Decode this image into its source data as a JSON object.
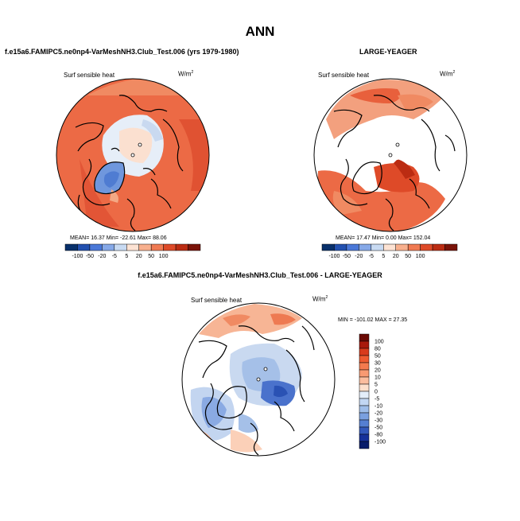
{
  "figure": {
    "title": "ANN",
    "diff_title": "f.e15a6.FAMIPC5.ne0np4-VarMeshNH3.Club_Test.006 - LARGE-YEAGER"
  },
  "panels": [
    {
      "id": "left",
      "title": "f.e15a6.FAMIPC5.ne0np4-VarMeshNH3.Club_Test.006 (yrs 1979-1980)",
      "variable": "Surf sensible heat",
      "units": "W/m",
      "units_exp": "2",
      "stats_text": "MEAN=  16.37  Min= -22.61  Max=  88.06",
      "stats": {
        "mean": 16.37,
        "min": -22.61,
        "max": 88.06
      }
    },
    {
      "id": "right",
      "title": "LARGE-YEAGER",
      "variable": "Surf sensible heat",
      "units": "W/m",
      "units_exp": "2",
      "stats_text": "MEAN=  17.47  Min=   0.00  Max=  152.04",
      "stats": {
        "mean": 17.47,
        "min": 0.0,
        "max": 152.04
      }
    },
    {
      "id": "diff",
      "variable": "Surf sensible heat",
      "units": "W/m",
      "units_exp": "2",
      "stats_text": "MIN = -101.02  MAX =  27.35",
      "stats": {
        "min": -101.02,
        "max": 27.35
      }
    }
  ],
  "colorbar_main": {
    "labels": [
      "-100",
      "-50",
      "-20",
      "-5",
      "5",
      "20",
      "50",
      "100"
    ],
    "colors": [
      "#08306b",
      "#2250b0",
      "#4a78d8",
      "#86a9e8",
      "#c8daf2",
      "#fde3d4",
      "#f8b08e",
      "#f07a52",
      "#de4a28",
      "#bb2c12",
      "#7a1308"
    ]
  },
  "colorbar_diff": {
    "labels": [
      "100",
      "80",
      "50",
      "30",
      "20",
      "10",
      "5",
      "0",
      "-5",
      "-10",
      "-20",
      "-30",
      "-50",
      "-80",
      "-100"
    ],
    "colors": [
      "#6b0a05",
      "#a8190c",
      "#d83a1c",
      "#ee5a30",
      "#f47a4e",
      "#f89a72",
      "#fbbd9e",
      "#fde0cc",
      "#e4eefa",
      "#c2d7f3",
      "#9ebde9",
      "#7aa0df",
      "#557fd2",
      "#3358bb",
      "#16319a",
      "#081c6a"
    ]
  }
}
